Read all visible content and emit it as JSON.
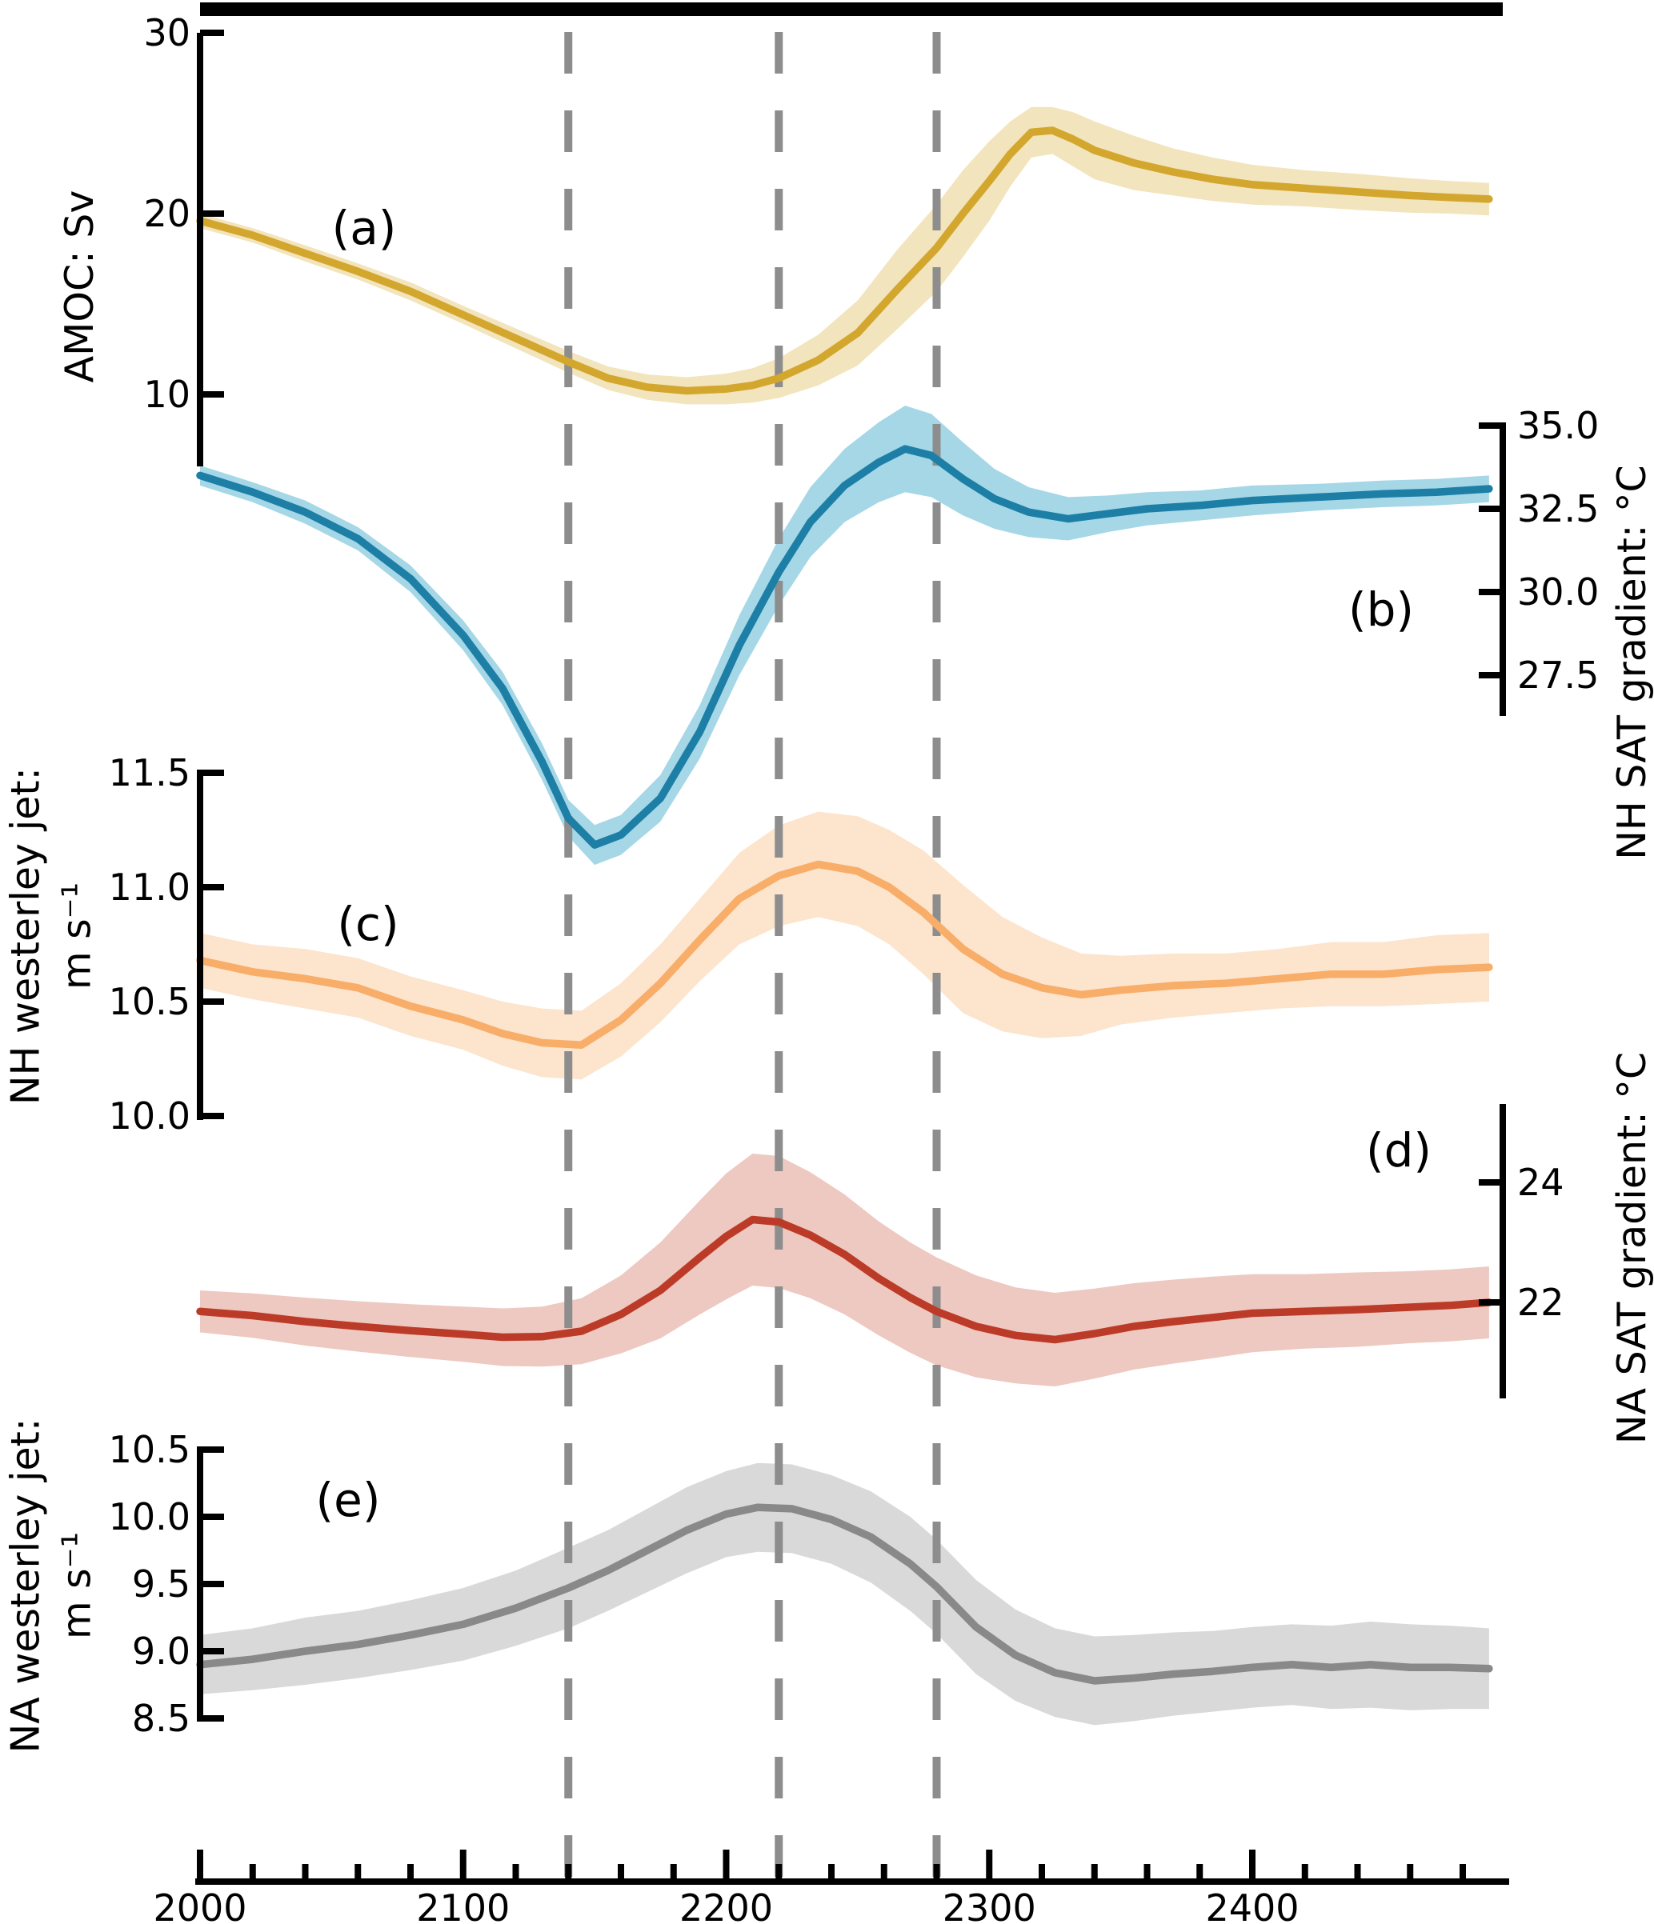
{
  "figure": {
    "background": "#ffffff",
    "top_bar_color": "#000000",
    "axis_color": "#000000",
    "event_lines": {
      "years": [
        2140,
        2220,
        2280
      ],
      "color": "#8d8d8d",
      "style": "dashed"
    },
    "xaxis": {
      "tick_labels": [
        "2000",
        "2100",
        "2200",
        "2300",
        "2400"
      ],
      "tick_values": [
        2000,
        2100,
        2200,
        2300,
        2400
      ],
      "minor_tick_step_years": 20,
      "range_years": [
        2000,
        2490
      ],
      "xlabel": ""
    }
  },
  "chart_data": [
    {
      "panel": "a",
      "panel_label": "(a)",
      "type": "line",
      "ylabel": "AMOC: Sv",
      "axis_side": "left",
      "ytick_labels": [
        "30",
        "20",
        "10"
      ],
      "ytick_values": [
        30,
        20,
        10
      ],
      "line_color": "#d3a62e",
      "band_color": "#f2e4bc",
      "x": [
        2000,
        2020,
        2040,
        2060,
        2080,
        2100,
        2120,
        2140,
        2155,
        2170,
        2185,
        2200,
        2210,
        2220,
        2235,
        2250,
        2265,
        2280,
        2290,
        2300,
        2308,
        2316,
        2324,
        2332,
        2340,
        2355,
        2370,
        2385,
        2400,
        2420,
        2440,
        2460,
        2475,
        2490
      ],
      "y": [
        19.6,
        18.8,
        17.8,
        16.8,
        15.7,
        14.4,
        13.1,
        11.8,
        10.9,
        10.4,
        10.2,
        10.3,
        10.5,
        10.9,
        11.9,
        13.4,
        15.8,
        18.1,
        20.0,
        21.8,
        23.3,
        24.5,
        24.6,
        24.1,
        23.5,
        22.8,
        22.3,
        21.9,
        21.6,
        21.4,
        21.2,
        21.0,
        20.9,
        20.8
      ],
      "band_halfwidth": [
        0.4,
        0.4,
        0.45,
        0.45,
        0.5,
        0.5,
        0.55,
        0.6,
        0.65,
        0.7,
        0.75,
        0.85,
        0.95,
        1.1,
        1.4,
        1.8,
        2.2,
        2.4,
        2.4,
        2.2,
        1.8,
        1.4,
        1.3,
        1.5,
        1.6,
        1.5,
        1.3,
        1.2,
        1.1,
        1.0,
        1.0,
        0.95,
        0.9,
        0.9
      ]
    },
    {
      "panel": "b",
      "panel_label": "(b)",
      "type": "line",
      "ylabel": "NH SAT gradient: °C",
      "axis_side": "right",
      "ytick_labels": [
        "35.0",
        "32.5",
        "30.0",
        "27.5"
      ],
      "ytick_values": [
        35.0,
        32.5,
        30.0,
        27.5
      ],
      "line_color": "#1d7fa6",
      "band_color": "#a5d7e7",
      "x": [
        2000,
        2020,
        2040,
        2060,
        2080,
        2100,
        2115,
        2130,
        2140,
        2150,
        2160,
        2175,
        2190,
        2205,
        2220,
        2232,
        2245,
        2258,
        2268,
        2278,
        2290,
        2302,
        2315,
        2330,
        2345,
        2360,
        2380,
        2400,
        2425,
        2450,
        2470,
        2490
      ],
      "y": [
        33.5,
        33.0,
        32.4,
        31.6,
        30.4,
        28.7,
        27.1,
        24.9,
        23.2,
        22.4,
        22.7,
        23.8,
        25.8,
        28.4,
        30.6,
        32.1,
        33.2,
        33.9,
        34.3,
        34.1,
        33.4,
        32.8,
        32.4,
        32.2,
        32.35,
        32.5,
        32.6,
        32.75,
        32.85,
        32.95,
        33.0,
        33.1
      ],
      "band_halfwidth": [
        0.3,
        0.3,
        0.35,
        0.35,
        0.4,
        0.45,
        0.5,
        0.55,
        0.55,
        0.6,
        0.6,
        0.7,
        0.8,
        0.9,
        1.0,
        1.05,
        1.1,
        1.2,
        1.3,
        1.25,
        1.1,
        0.9,
        0.75,
        0.65,
        0.55,
        0.5,
        0.45,
        0.45,
        0.4,
        0.4,
        0.4,
        0.4
      ]
    },
    {
      "panel": "c",
      "panel_label": "(c)",
      "type": "line",
      "ylabel": "NH westerley jet:\nm s⁻¹",
      "axis_side": "left",
      "ytick_labels": [
        "11.5",
        "11.0",
        "10.5",
        "10.0"
      ],
      "ytick_values": [
        11.5,
        11.0,
        10.5,
        10.0
      ],
      "line_color": "#f8ad69",
      "band_color": "#fce4cd",
      "x": [
        2000,
        2020,
        2040,
        2060,
        2080,
        2100,
        2115,
        2130,
        2145,
        2160,
        2175,
        2190,
        2205,
        2220,
        2235,
        2250,
        2262,
        2275,
        2290,
        2305,
        2320,
        2335,
        2350,
        2370,
        2390,
        2410,
        2430,
        2450,
        2470,
        2490
      ],
      "y": [
        10.68,
        10.63,
        10.6,
        10.56,
        10.48,
        10.42,
        10.36,
        10.32,
        10.31,
        10.42,
        10.58,
        10.77,
        10.95,
        11.05,
        11.1,
        11.07,
        11.0,
        10.89,
        10.73,
        10.62,
        10.56,
        10.53,
        10.55,
        10.57,
        10.58,
        10.6,
        10.62,
        10.62,
        10.64,
        10.65
      ],
      "band_halfwidth": [
        0.12,
        0.12,
        0.13,
        0.13,
        0.13,
        0.13,
        0.14,
        0.15,
        0.15,
        0.16,
        0.17,
        0.18,
        0.2,
        0.22,
        0.23,
        0.24,
        0.25,
        0.27,
        0.28,
        0.25,
        0.22,
        0.18,
        0.15,
        0.14,
        0.13,
        0.13,
        0.14,
        0.14,
        0.15,
        0.15
      ]
    },
    {
      "panel": "d",
      "panel_label": "(d)",
      "type": "line",
      "ylabel": "NA SAT gradient: °C",
      "axis_side": "right",
      "ytick_labels": [
        "24",
        "22"
      ],
      "ytick_values": [
        24,
        22
      ],
      "line_color": "#bc3b28",
      "band_color": "#edc9c1",
      "x": [
        2000,
        2020,
        2040,
        2060,
        2080,
        2100,
        2115,
        2130,
        2145,
        2160,
        2175,
        2190,
        2200,
        2210,
        2220,
        2232,
        2245,
        2258,
        2270,
        2280,
        2295,
        2310,
        2325,
        2340,
        2355,
        2370,
        2385,
        2400,
        2420,
        2440,
        2460,
        2475,
        2490
      ],
      "y": [
        21.85,
        21.78,
        21.68,
        21.6,
        21.53,
        21.47,
        21.42,
        21.43,
        21.52,
        21.8,
        22.2,
        22.75,
        23.1,
        23.38,
        23.34,
        23.12,
        22.8,
        22.4,
        22.08,
        21.85,
        21.6,
        21.45,
        21.38,
        21.48,
        21.6,
        21.68,
        21.75,
        21.82,
        21.85,
        21.88,
        21.92,
        21.95,
        22.0
      ],
      "band_halfwidth": [
        0.35,
        0.37,
        0.4,
        0.42,
        0.44,
        0.46,
        0.48,
        0.5,
        0.55,
        0.65,
        0.8,
        0.95,
        1.05,
        1.1,
        1.1,
        1.05,
        1.0,
        0.95,
        0.92,
        0.9,
        0.85,
        0.8,
        0.78,
        0.75,
        0.72,
        0.7,
        0.68,
        0.65,
        0.62,
        0.62,
        0.6,
        0.6,
        0.6
      ]
    },
    {
      "panel": "e",
      "panel_label": "(e)",
      "type": "line",
      "ylabel": "NA westerley jet:\nm s⁻¹",
      "axis_side": "left",
      "ytick_labels": [
        "10.5",
        "10.0",
        "9.5",
        "9.0",
        "8.5"
      ],
      "ytick_values": [
        10.5,
        10.0,
        9.5,
        9.0,
        8.5
      ],
      "line_color": "#898989",
      "band_color": "#d9d9d9",
      "x": [
        2000,
        2020,
        2040,
        2060,
        2080,
        2100,
        2120,
        2140,
        2155,
        2170,
        2185,
        2200,
        2212,
        2225,
        2240,
        2255,
        2270,
        2280,
        2295,
        2310,
        2325,
        2340,
        2355,
        2370,
        2385,
        2400,
        2415,
        2430,
        2445,
        2460,
        2475,
        2490
      ],
      "y": [
        8.9,
        8.94,
        9.0,
        9.05,
        9.12,
        9.2,
        9.32,
        9.47,
        9.6,
        9.75,
        9.9,
        10.02,
        10.07,
        10.06,
        9.98,
        9.85,
        9.65,
        9.48,
        9.18,
        8.97,
        8.84,
        8.78,
        8.8,
        8.83,
        8.85,
        8.88,
        8.9,
        8.88,
        8.9,
        8.88,
        8.88,
        8.87
      ],
      "band_halfwidth": [
        0.22,
        0.23,
        0.25,
        0.25,
        0.26,
        0.27,
        0.28,
        0.3,
        0.3,
        0.31,
        0.32,
        0.32,
        0.33,
        0.33,
        0.33,
        0.34,
        0.35,
        0.35,
        0.35,
        0.34,
        0.33,
        0.33,
        0.32,
        0.31,
        0.3,
        0.3,
        0.3,
        0.31,
        0.32,
        0.32,
        0.31,
        0.3
      ]
    }
  ]
}
